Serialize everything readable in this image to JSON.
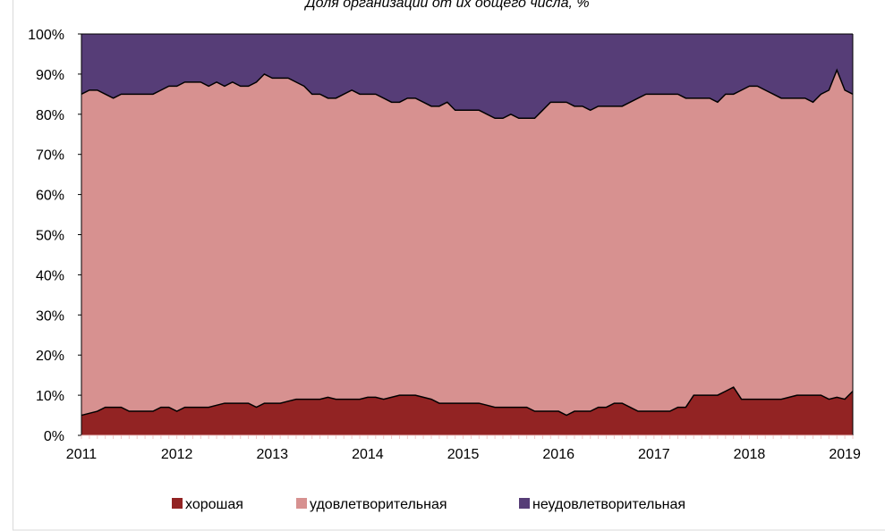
{
  "chart_data": {
    "type": "stacked_area",
    "title": "Доля организаций от их общего числа, %",
    "categories": [
      "2011",
      null,
      null,
      null,
      null,
      null,
      null,
      null,
      null,
      null,
      null,
      null,
      "2012",
      null,
      null,
      null,
      null,
      null,
      null,
      null,
      null,
      null,
      null,
      null,
      "2013",
      null,
      null,
      null,
      null,
      null,
      null,
      null,
      null,
      null,
      null,
      null,
      "2014",
      null,
      null,
      null,
      null,
      null,
      null,
      null,
      null,
      null,
      null,
      null,
      "2015",
      null,
      null,
      null,
      null,
      null,
      null,
      null,
      null,
      null,
      null,
      null,
      "2016",
      null,
      null,
      null,
      null,
      null,
      null,
      null,
      null,
      null,
      null,
      null,
      "2017",
      null,
      null,
      null,
      null,
      null,
      null,
      null,
      null,
      null,
      null,
      null,
      "2018",
      null,
      null,
      null,
      null,
      null,
      null,
      null,
      null,
      null,
      null,
      null,
      "2019",
      null
    ],
    "series": [
      {
        "name": "хорошая",
        "color": "#922323",
        "values": [
          5,
          5.5,
          6,
          7,
          7,
          7,
          6,
          6,
          6,
          6,
          7,
          7,
          6,
          7,
          7,
          7,
          7,
          7.5,
          8,
          8,
          8,
          8,
          7,
          8,
          8,
          8,
          8.5,
          9,
          9,
          9,
          9,
          9.5,
          9,
          9,
          9,
          9,
          9.5,
          9.5,
          9,
          9.5,
          10,
          10,
          10,
          9.5,
          9,
          8,
          8,
          8,
          8,
          8,
          8,
          7.5,
          7,
          7,
          7,
          7,
          7,
          6,
          6,
          6,
          6,
          5,
          6,
          6,
          6,
          7,
          7,
          8,
          8,
          7,
          6,
          6,
          6,
          6,
          6,
          7,
          7,
          10,
          10,
          10,
          10,
          11,
          12,
          9,
          9,
          9,
          9,
          9,
          9,
          9.5,
          10,
          10,
          10,
          10,
          9,
          9.5,
          9,
          11
        ]
      },
      {
        "name": "удовлетворительная",
        "color": "#d79190",
        "values": [
          80,
          80.5,
          80,
          78,
          77,
          78,
          79,
          79,
          79,
          79,
          79,
          80,
          81,
          81,
          81,
          81,
          80,
          80.5,
          79,
          80,
          79,
          79,
          81,
          82,
          81,
          81,
          80.5,
          79,
          78,
          76,
          76,
          74.5,
          75,
          76,
          77,
          76,
          75.5,
          75.5,
          75,
          73.5,
          73,
          74,
          74,
          73.5,
          73,
          74,
          75,
          73,
          73,
          73,
          73,
          72.5,
          72,
          72,
          73,
          72,
          72,
          73,
          75,
          77,
          77,
          78,
          76,
          76,
          75,
          75,
          75,
          74,
          74,
          76,
          78,
          79,
          79,
          79,
          79,
          78,
          77,
          74,
          74,
          74,
          73,
          74,
          73,
          77,
          78,
          78,
          77,
          76,
          75,
          74.5,
          74,
          74,
          73,
          75,
          77,
          81.5,
          77,
          74
        ]
      },
      {
        "name": "неудовлетворительная",
        "color": "#563d77",
        "values": [
          15,
          14,
          14,
          15,
          16,
          15,
          15,
          15,
          15,
          15,
          14,
          13,
          13,
          12,
          12,
          12,
          13,
          12,
          13,
          12,
          13,
          13,
          12,
          10,
          11,
          11,
          11,
          12,
          13,
          15,
          15,
          16,
          16,
          15,
          14,
          15,
          15,
          15,
          16,
          17,
          17,
          16,
          16,
          17,
          18,
          18,
          17,
          19,
          19,
          19,
          19,
          20,
          21,
          21,
          20,
          21,
          21,
          21,
          19,
          17,
          17,
          17,
          18,
          18,
          19,
          18,
          18,
          18,
          18,
          17,
          16,
          15,
          15,
          15,
          15,
          15,
          16,
          16,
          16,
          16,
          17,
          15,
          15,
          14,
          13,
          13,
          14,
          15,
          16,
          16,
          16,
          16,
          17,
          15,
          14,
          9,
          14,
          15
        ]
      }
    ],
    "ylim": [
      0,
      100
    ],
    "yticks": [
      {
        "value": 0,
        "label": "0%"
      },
      {
        "value": 10,
        "label": "10%"
      },
      {
        "value": 20,
        "label": "20%"
      },
      {
        "value": 30,
        "label": "30%"
      },
      {
        "value": 40,
        "label": "40%"
      },
      {
        "value": 50,
        "label": "50%"
      },
      {
        "value": 60,
        "label": "60%"
      },
      {
        "value": 70,
        "label": "70%"
      },
      {
        "value": 80,
        "label": "80%"
      },
      {
        "value": 90,
        "label": "90%"
      },
      {
        "value": 100,
        "label": "100%"
      }
    ],
    "legend": "bottom"
  }
}
